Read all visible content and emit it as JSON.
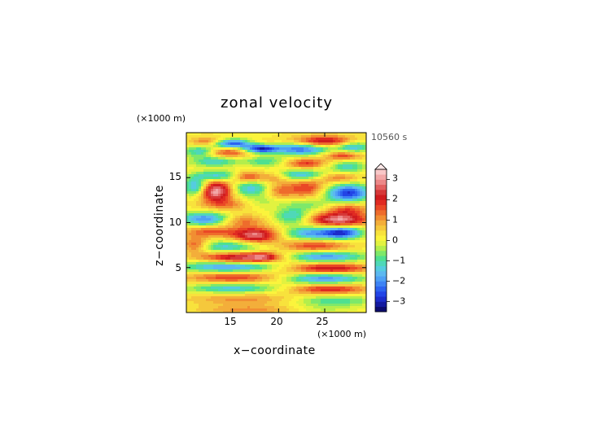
{
  "chart_data": {
    "type": "heatmap",
    "title": "zonal velocity",
    "xlabel": "x−coordinate",
    "ylabel": "z−coordinate",
    "x_unit": "(×1000 m)",
    "z_unit": "(×1000 m)",
    "time_label": "10560 s",
    "xlim": [
      10,
      29.5
    ],
    "ylim": [
      0,
      20
    ],
    "xticks": [
      15,
      20,
      25
    ],
    "xtick_labels": [
      "15",
      "20",
      "25"
    ],
    "yticks": [
      5,
      10,
      15
    ],
    "ytick_labels": [
      "5",
      "10",
      "15"
    ],
    "colorbar": {
      "levels": [
        -3.5,
        -3.25,
        -3,
        -2.75,
        -2.5,
        -2.25,
        -2,
        -1.75,
        -1.5,
        -1.25,
        -1,
        -0.75,
        -0.5,
        -0.25,
        0,
        0.25,
        0.5,
        0.75,
        1,
        1.25,
        1.5,
        1.75,
        2,
        2.25,
        2.5,
        2.75,
        3,
        3.25,
        3.5
      ],
      "colors": [
        "#0c0c6e",
        "#141aa0",
        "#1c2ccb",
        "#2244e6",
        "#2d63f0",
        "#3e83f4",
        "#4ea0f5",
        "#5cb8f0",
        "#55cce0",
        "#4fd8b8",
        "#4fe090",
        "#7ee86a",
        "#b4ee4c",
        "#e2f240",
        "#fbf43c",
        "#f8e23c",
        "#f5c83c",
        "#f3ae3a",
        "#f18e32",
        "#ee6c2c",
        "#ea4826",
        "#e02a22",
        "#d01c1e",
        "#d63838",
        "#e26060",
        "#ec8888",
        "#f2a8a8",
        "#f8c8c8"
      ],
      "tick_values": [
        -3,
        -2,
        -1,
        0,
        1,
        2,
        3
      ],
      "tick_labels": [
        "−3",
        "−2",
        "−1",
        "0",
        "1",
        "2",
        "3"
      ]
    },
    "field_model": {
      "description_units": "u(x,z) approximated as sum of gaussian blobs; x and z in 1000 m, amplitude in colorbar units",
      "background": 0.2,
      "blobs": [
        {
          "x": 12.5,
          "z": 19.0,
          "sx": 1.4,
          "sz": 0.35,
          "a": 1.4
        },
        {
          "x": 15.0,
          "z": 18.8,
          "sx": 1.6,
          "sz": 0.35,
          "a": -3.0
        },
        {
          "x": 17.5,
          "z": 18.9,
          "sx": 1.6,
          "sz": 0.3,
          "a": 0.6
        },
        {
          "x": 18.0,
          "z": 18.2,
          "sx": 1.3,
          "sz": 0.35,
          "a": -3.0
        },
        {
          "x": 14.5,
          "z": 17.8,
          "sx": 2.0,
          "sz": 0.4,
          "a": 1.5
        },
        {
          "x": 11.5,
          "z": 17.9,
          "sx": 1.2,
          "sz": 0.4,
          "a": -1.8
        },
        {
          "x": 25.0,
          "z": 19.0,
          "sx": 2.4,
          "sz": 0.45,
          "a": 2.4
        },
        {
          "x": 22.5,
          "z": 18.2,
          "sx": 2.2,
          "sz": 0.5,
          "a": -2.6
        },
        {
          "x": 28.0,
          "z": 18.4,
          "sx": 1.4,
          "sz": 0.5,
          "a": -2.0
        },
        {
          "x": 27.0,
          "z": 17.5,
          "sx": 1.5,
          "sz": 0.4,
          "a": 1.8
        },
        {
          "x": 13.0,
          "z": 16.8,
          "sx": 1.8,
          "sz": 0.4,
          "a": -1.5
        },
        {
          "x": 18.5,
          "z": 16.8,
          "sx": 1.5,
          "sz": 0.4,
          "a": -1.2
        },
        {
          "x": 23.0,
          "z": 16.6,
          "sx": 1.5,
          "sz": 0.4,
          "a": 1.6
        },
        {
          "x": 27.5,
          "z": 16.2,
          "sx": 1.4,
          "sz": 0.5,
          "a": -1.4
        },
        {
          "x": 13.5,
          "z": 15.2,
          "sx": 1.8,
          "sz": 0.4,
          "a": -1.8
        },
        {
          "x": 16.5,
          "z": 15.1,
          "sx": 1.2,
          "sz": 0.4,
          "a": 1.8
        },
        {
          "x": 19.5,
          "z": 15.0,
          "sx": 1.0,
          "sz": 0.4,
          "a": 0.9
        },
        {
          "x": 22.5,
          "z": 15.3,
          "sx": 1.8,
          "sz": 0.4,
          "a": -1.8
        },
        {
          "x": 26.5,
          "z": 15.0,
          "sx": 1.6,
          "sz": 0.4,
          "a": 1.2
        },
        {
          "x": 13.2,
          "z": 13.5,
          "sx": 1.2,
          "sz": 0.8,
          "a": 3.0
        },
        {
          "x": 11.0,
          "z": 14.0,
          "sx": 0.9,
          "sz": 0.7,
          "a": -2.0
        },
        {
          "x": 17.0,
          "z": 13.8,
          "sx": 1.4,
          "sz": 0.6,
          "a": -1.6
        },
        {
          "x": 20.0,
          "z": 13.5,
          "sx": 1.0,
          "sz": 0.6,
          "a": 1.0
        },
        {
          "x": 23.0,
          "z": 13.8,
          "sx": 1.6,
          "sz": 0.7,
          "a": 1.6
        },
        {
          "x": 27.5,
          "z": 13.3,
          "sx": 1.7,
          "sz": 0.7,
          "a": -3.0
        },
        {
          "x": 14.5,
          "z": 12.0,
          "sx": 2.0,
          "sz": 0.5,
          "a": 1.0
        },
        {
          "x": 18.0,
          "z": 12.3,
          "sx": 1.6,
          "sz": 0.6,
          "a": -0.6
        },
        {
          "x": 23.0,
          "z": 12.0,
          "sx": 1.8,
          "sz": 0.5,
          "a": -0.8
        },
        {
          "x": 27.5,
          "z": 11.5,
          "sx": 1.5,
          "sz": 0.5,
          "a": 1.4
        },
        {
          "x": 12.0,
          "z": 10.4,
          "sx": 2.0,
          "sz": 0.55,
          "a": -2.2
        },
        {
          "x": 16.0,
          "z": 10.2,
          "sx": 1.6,
          "sz": 0.5,
          "a": 1.2
        },
        {
          "x": 21.5,
          "z": 10.7,
          "sx": 1.3,
          "sz": 0.6,
          "a": -1.6
        },
        {
          "x": 26.5,
          "z": 10.3,
          "sx": 2.2,
          "sz": 0.55,
          "a": 2.8
        },
        {
          "x": 12.5,
          "z": 9.0,
          "sx": 2.0,
          "sz": 0.45,
          "a": 1.4
        },
        {
          "x": 17.5,
          "z": 8.6,
          "sx": 1.8,
          "sz": 0.6,
          "a": 2.6
        },
        {
          "x": 23.5,
          "z": 8.8,
          "sx": 2.0,
          "sz": 0.55,
          "a": -2.0
        },
        {
          "x": 27.0,
          "z": 8.9,
          "sx": 1.5,
          "sz": 0.5,
          "a": -2.8
        },
        {
          "x": 14.5,
          "z": 7.3,
          "sx": 2.5,
          "sz": 0.5,
          "a": -1.6
        },
        {
          "x": 24.0,
          "z": 7.4,
          "sx": 2.5,
          "sz": 0.5,
          "a": 1.6
        },
        {
          "x": 11.0,
          "z": 7.5,
          "sx": 1.0,
          "sz": 0.6,
          "a": 1.6
        },
        {
          "x": 16.0,
          "z": 6.1,
          "sx": 3.0,
          "sz": 0.45,
          "a": 2.6
        },
        {
          "x": 18.5,
          "z": 6.2,
          "sx": 1.0,
          "sz": 0.3,
          "a": 1.2
        },
        {
          "x": 25.0,
          "z": 6.2,
          "sx": 3.0,
          "sz": 0.45,
          "a": -2.2
        },
        {
          "x": 14.5,
          "z": 5.1,
          "sx": 3.5,
          "sz": 0.45,
          "a": -2.2
        },
        {
          "x": 25.5,
          "z": 4.9,
          "sx": 3.0,
          "sz": 0.45,
          "a": 2.2
        },
        {
          "x": 15.0,
          "z": 3.9,
          "sx": 3.5,
          "sz": 0.45,
          "a": 1.6
        },
        {
          "x": 25.0,
          "z": 3.8,
          "sx": 3.0,
          "sz": 0.45,
          "a": -2.2
        },
        {
          "x": 15.0,
          "z": 2.7,
          "sx": 3.5,
          "sz": 0.4,
          "a": -1.6
        },
        {
          "x": 25.5,
          "z": 2.6,
          "sx": 3.0,
          "sz": 0.4,
          "a": 1.8
        },
        {
          "x": 16.0,
          "z": 1.5,
          "sx": 4.0,
          "sz": 0.45,
          "a": 0.9
        },
        {
          "x": 26.0,
          "z": 1.3,
          "sx": 3.0,
          "sz": 0.45,
          "a": -1.2
        },
        {
          "x": 17.0,
          "z": 0.3,
          "sx": 4.0,
          "sz": 0.4,
          "a": 0.9
        },
        {
          "x": 24.5,
          "z": 0.3,
          "sx": 2.5,
          "sz": 0.4,
          "a": -0.5
        }
      ]
    }
  }
}
